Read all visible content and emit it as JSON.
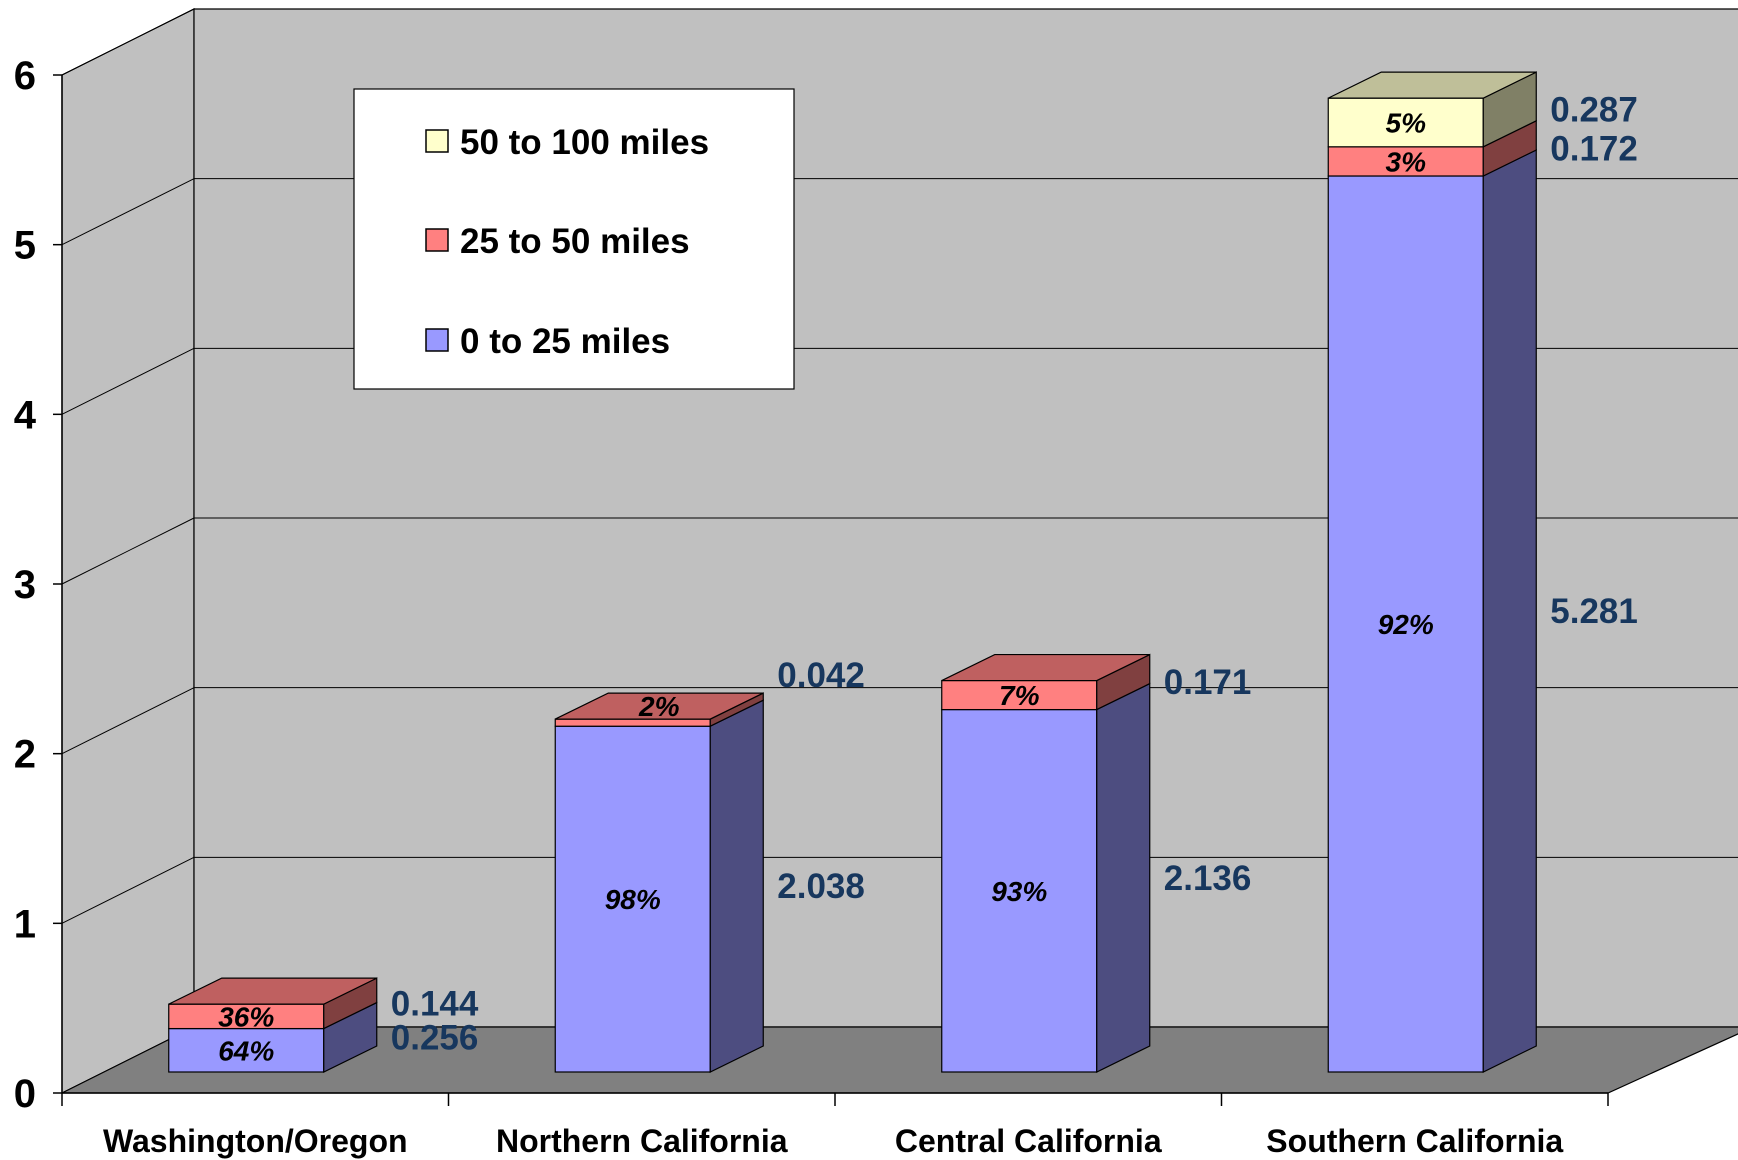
{
  "chart_data": {
    "type": "bar",
    "stacked": true,
    "three_d": true,
    "categories": [
      "Washington/Oregon",
      "Northern California",
      "Central California",
      "Southern California"
    ],
    "series": [
      {
        "name": "0 to 25 miles",
        "color": "#9999ff",
        "values": [
          0.256,
          2.038,
          2.136,
          5.281
        ],
        "percent_labels": [
          "64%",
          "98%",
          "93%",
          "92%"
        ],
        "value_labels": [
          "0.256",
          "2.038",
          "2.136",
          "5.281"
        ]
      },
      {
        "name": "25 to 50 miles",
        "color": "#ff8080",
        "values": [
          0.144,
          0.042,
          0.171,
          0.172
        ],
        "percent_labels": [
          "36%",
          "2%",
          "7%",
          "3%"
        ],
        "value_labels": [
          "0.144",
          "0.042",
          "0.171",
          "0.172"
        ]
      },
      {
        "name": "50 to 100 miles",
        "color": "#ffffcc",
        "values": [
          0,
          0,
          0,
          0.287
        ],
        "percent_labels": [
          "",
          "",
          "",
          "5%"
        ],
        "value_labels": [
          "",
          "",
          "",
          "0.287"
        ]
      }
    ],
    "ylim": [
      0,
      6
    ],
    "yticks": [
      "0",
      "1",
      "2",
      "3",
      "4",
      "5",
      "6"
    ],
    "grid": true,
    "legend": {
      "position": "top-left",
      "order": [
        "50 to 100 miles",
        "25 to 50 miles",
        "0 to 25 miles"
      ]
    },
    "wall_color": "#c0c0c0",
    "floor_color": "#808080"
  }
}
